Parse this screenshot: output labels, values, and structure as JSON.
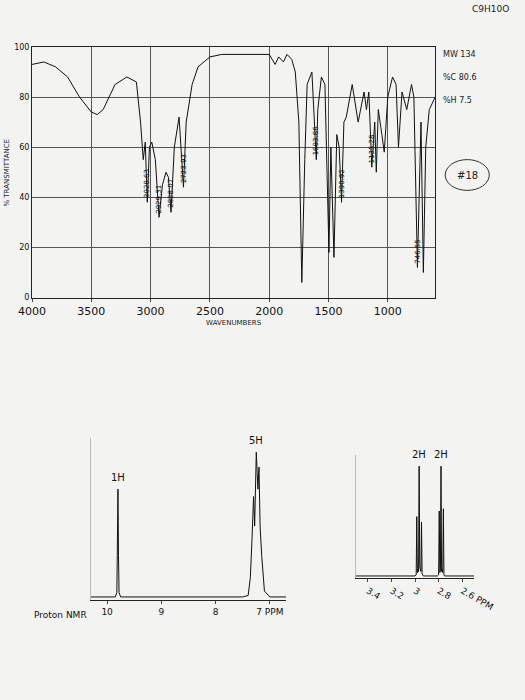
{
  "header": {
    "formula": "C9H10O",
    "mw": "MW 134",
    "carbon": "%C 80.6",
    "hydrogen": "%H 7.5",
    "label": "#18"
  },
  "chart_data": [
    {
      "type": "line",
      "x_label": "WAVENUMBERS",
      "y_label": "% TRANSMITTANCE",
      "x": [
        4000,
        3900,
        3800,
        3700,
        3600,
        3500,
        3450,
        3400,
        3300,
        3200,
        3120,
        3085,
        3062,
        3045,
        3028,
        3010,
        2990,
        2960,
        2929,
        2900,
        2870,
        2850,
        2828,
        2800,
        2760,
        2723,
        2700,
        2650,
        2600,
        2500,
        2400,
        2300,
        2200,
        2100,
        2000,
        1950,
        1920,
        1880,
        1850,
        1810,
        1780,
        1750,
        1725,
        1700,
        1680,
        1640,
        1603,
        1590,
        1560,
        1530,
        1496,
        1480,
        1454,
        1430,
        1410,
        1390,
        1370,
        1350,
        1320,
        1300,
        1250,
        1200,
        1180,
        1160,
        1135,
        1110,
        1097,
        1080,
        1050,
        1030,
        1000,
        960,
        930,
        910,
        880,
        840,
        800,
        780,
        750,
        720,
        700,
        680,
        650,
        600
      ],
      "values": [
        93,
        94,
        92,
        88,
        80,
        74,
        73,
        75,
        85,
        88,
        86,
        70,
        55,
        62,
        38,
        60,
        62,
        55,
        32,
        45,
        50,
        48,
        34,
        60,
        72,
        44,
        70,
        85,
        92,
        96,
        97,
        97,
        97,
        97,
        97,
        93,
        96,
        94,
        97,
        95,
        90,
        70,
        6,
        55,
        85,
        90,
        55,
        75,
        88,
        85,
        18,
        60,
        16,
        65,
        60,
        38,
        70,
        72,
        80,
        85,
        70,
        82,
        75,
        82,
        52,
        70,
        50,
        75,
        65,
        58,
        80,
        88,
        85,
        60,
        82,
        75,
        85,
        80,
        12,
        70,
        10,
        60,
        75,
        80
      ],
      "color": "#111111",
      "xlim": [
        4000,
        600
      ],
      "xticks": [
        4000,
        3500,
        3000,
        2500,
        2000,
        1500,
        1000
      ],
      "ylim": [
        0,
        100
      ],
      "yticks": [
        0,
        20,
        40,
        60,
        80,
        100
      ],
      "grid": true,
      "annotations": [
        {
          "x": 3028.63,
          "text": "3028.63"
        },
        {
          "x": 2929.31,
          "text": "2929.31"
        },
        {
          "x": 2828.07,
          "text": "2828.07"
        },
        {
          "x": 2723.93,
          "text": "2723.93"
        },
        {
          "x": 1603.86,
          "text": "1603.86"
        },
        {
          "x": 1390.92,
          "text": "1390.92"
        },
        {
          "x": 1135.28,
          "text": "1135.28"
        },
        {
          "x": 746.55,
          "text": "746.55"
        }
      ]
    },
    {
      "type": "line",
      "title": "Proton NMR",
      "x": [
        10.3,
        9.85,
        9.82,
        9.81,
        9.8,
        9.79,
        9.78,
        9.75,
        9.0,
        7.5,
        7.4,
        7.36,
        7.33,
        7.3,
        7.28,
        7.25,
        7.22,
        7.2,
        7.18,
        7.15,
        7.1,
        7.0,
        6.7
      ],
      "values": [
        0.02,
        0.02,
        0.05,
        0.3,
        0.75,
        0.3,
        0.05,
        0.02,
        0.02,
        0.02,
        0.03,
        0.15,
        0.4,
        0.7,
        0.5,
        1.0,
        0.75,
        0.9,
        0.5,
        0.3,
        0.06,
        0.02,
        0.02
      ],
      "color": "#111111",
      "xlim": [
        10.3,
        6.7
      ],
      "xticks": [
        10,
        9,
        8,
        {
          "value": 7,
          "label": "7 PPM"
        }
      ],
      "ylim": [
        0,
        1.1
      ],
      "yticks": [],
      "grid": false,
      "tick_labels": "x",
      "annotations": [
        {
          "x": 9.8,
          "text": "1H"
        },
        {
          "x": 7.25,
          "text": "5H"
        }
      ]
    },
    {
      "type": "line",
      "x": [
        3.5,
        3.0,
        2.99,
        2.985,
        2.98,
        2.975,
        2.97,
        2.965,
        2.96,
        2.955,
        2.95,
        2.945,
        2.94,
        2.93,
        2.81,
        2.8,
        2.795,
        2.79,
        2.785,
        2.78,
        2.775,
        2.77,
        2.765,
        2.76,
        2.755,
        2.75,
        2.5
      ],
      "values": [
        0.02,
        0.02,
        0.03,
        0.55,
        0.05,
        0.08,
        0.06,
        1.0,
        0.1,
        0.08,
        0.06,
        0.5,
        0.04,
        0.02,
        0.02,
        0.03,
        0.6,
        0.05,
        0.07,
        1.0,
        0.06,
        0.08,
        0.05,
        0.62,
        0.03,
        0.02,
        0.02
      ],
      "color": "#111111",
      "xlim": [
        3.5,
        2.5
      ],
      "xticks": [
        3.4,
        3.2,
        3.0,
        2.8,
        {
          "value": 2.6,
          "label": "2.6 PPM"
        }
      ],
      "ylim": [
        0,
        1.1
      ],
      "yticks": [],
      "grid": false,
      "tick_labels": "x",
      "annotations": [
        {
          "x": 2.965,
          "text": "2H"
        },
        {
          "x": 2.78,
          "text": "2H"
        }
      ]
    }
  ]
}
